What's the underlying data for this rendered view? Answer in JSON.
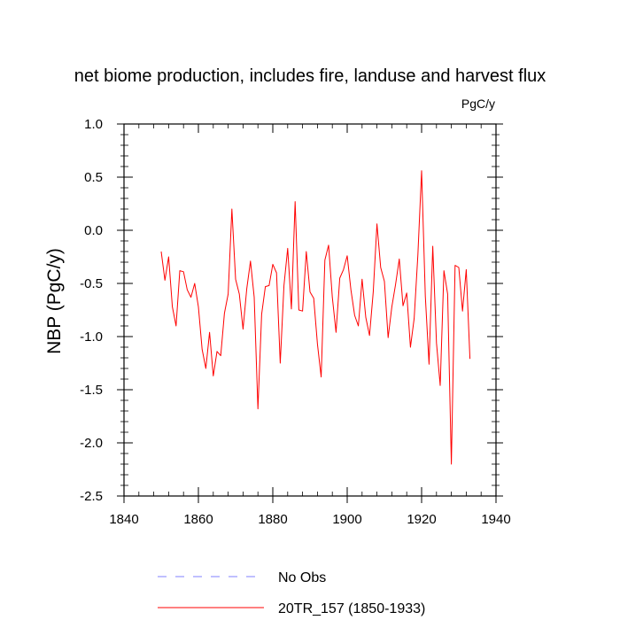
{
  "chart_data": {
    "type": "line",
    "title": "net biome production, includes fire, landuse and harvest flux",
    "units": "PgC/y",
    "xlabel": "",
    "ylabel": "NBP  (PgC/y)",
    "xlim": [
      1840,
      1940
    ],
    "ylim": [
      -2.5,
      1.0
    ],
    "x_ticks": [
      1840,
      1860,
      1880,
      1900,
      1920,
      1940
    ],
    "y_ticks": [
      -2.5,
      -2.0,
      -1.5,
      -1.0,
      -0.5,
      0.0,
      0.5,
      1.0
    ],
    "y_tick_labels": [
      "-2.5",
      "-2.0",
      "-1.5",
      "-1.0",
      "-0.5",
      "0.0",
      "0.5",
      "1.0"
    ],
    "legend": [
      {
        "label": "No Obs",
        "color": "#8080ff",
        "style": "dashed"
      },
      {
        "label": "20TR_157 (1850-1933)",
        "color": "#ff0000",
        "style": "solid"
      }
    ],
    "series": [
      {
        "name": "20TR_157 (1850-1933)",
        "color": "#ff0000",
        "x": [
          1850,
          1851,
          1852,
          1853,
          1854,
          1855,
          1856,
          1857,
          1858,
          1859,
          1860,
          1861,
          1862,
          1863,
          1864,
          1865,
          1866,
          1867,
          1868,
          1869,
          1870,
          1871,
          1872,
          1873,
          1874,
          1875,
          1876,
          1877,
          1878,
          1879,
          1880,
          1881,
          1882,
          1883,
          1884,
          1885,
          1886,
          1887,
          1888,
          1889,
          1890,
          1891,
          1892,
          1893,
          1894,
          1895,
          1896,
          1897,
          1898,
          1899,
          1900,
          1901,
          1902,
          1903,
          1904,
          1905,
          1906,
          1907,
          1908,
          1909,
          1910,
          1911,
          1912,
          1913,
          1914,
          1915,
          1916,
          1917,
          1918,
          1919,
          1920,
          1921,
          1922,
          1923,
          1924,
          1925,
          1926,
          1927,
          1928,
          1929,
          1930,
          1931,
          1932,
          1933
        ],
        "values": [
          -0.2,
          -0.47,
          -0.25,
          -0.72,
          -0.9,
          -0.38,
          -0.39,
          -0.56,
          -0.63,
          -0.5,
          -0.72,
          -1.12,
          -1.3,
          -0.96,
          -1.37,
          -1.14,
          -1.18,
          -0.78,
          -0.6,
          0.2,
          -0.46,
          -0.6,
          -0.93,
          -0.55,
          -0.29,
          -0.63,
          -1.68,
          -0.79,
          -0.53,
          -0.52,
          -0.32,
          -0.4,
          -1.25,
          -0.52,
          -0.17,
          -0.74,
          0.27,
          -0.75,
          -0.76,
          -0.2,
          -0.58,
          -0.64,
          -1.07,
          -1.38,
          -0.28,
          -0.14,
          -0.63,
          -0.96,
          -0.45,
          -0.37,
          -0.24,
          -0.56,
          -0.8,
          -0.9,
          -0.46,
          -0.82,
          -0.99,
          -0.58,
          0.06,
          -0.35,
          -0.48,
          -1.01,
          -0.72,
          -0.51,
          -0.27,
          -0.71,
          -0.59,
          -1.1,
          -0.83,
          -0.23,
          0.56,
          -0.62,
          -1.26,
          -0.15,
          -1.06,
          -1.46,
          -0.38,
          -0.6,
          -2.2,
          -0.33,
          -0.35,
          -0.76,
          -0.37,
          -1.21
        ]
      }
    ]
  }
}
